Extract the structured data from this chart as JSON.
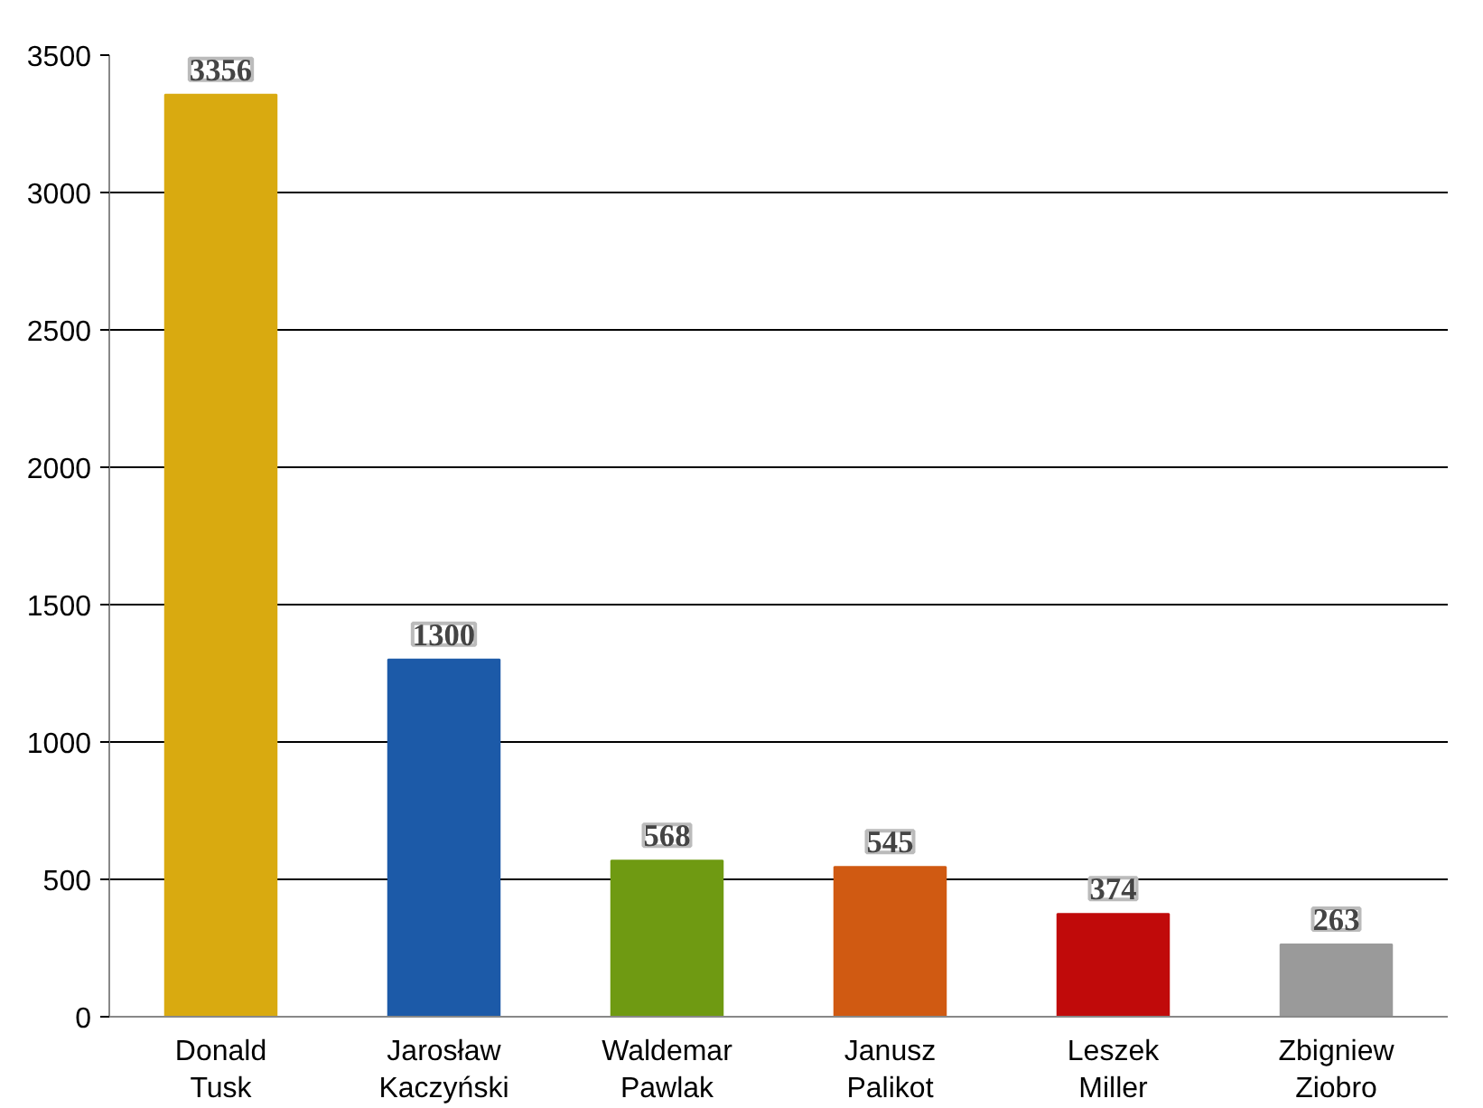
{
  "chart_data": {
    "type": "bar",
    "categories": [
      "Donald Tusk",
      "Jarosław Kaczyński",
      "Waldemar Pawlak",
      "Janusz Palikot",
      "Leszek Miller",
      "Zbigniew Ziobro"
    ],
    "values": [
      3356,
      1300,
      568,
      545,
      374,
      263
    ],
    "colors": [
      "#d9aa10",
      "#1c5aa8",
      "#6f9a12",
      "#d05a12",
      "#c00a0a",
      "#9a9a9a"
    ],
    "ylim": [
      0,
      3500
    ],
    "yticks": [
      0,
      500,
      1000,
      1500,
      2000,
      2500,
      3000,
      3500
    ],
    "grid": "y",
    "data_labels": true
  }
}
